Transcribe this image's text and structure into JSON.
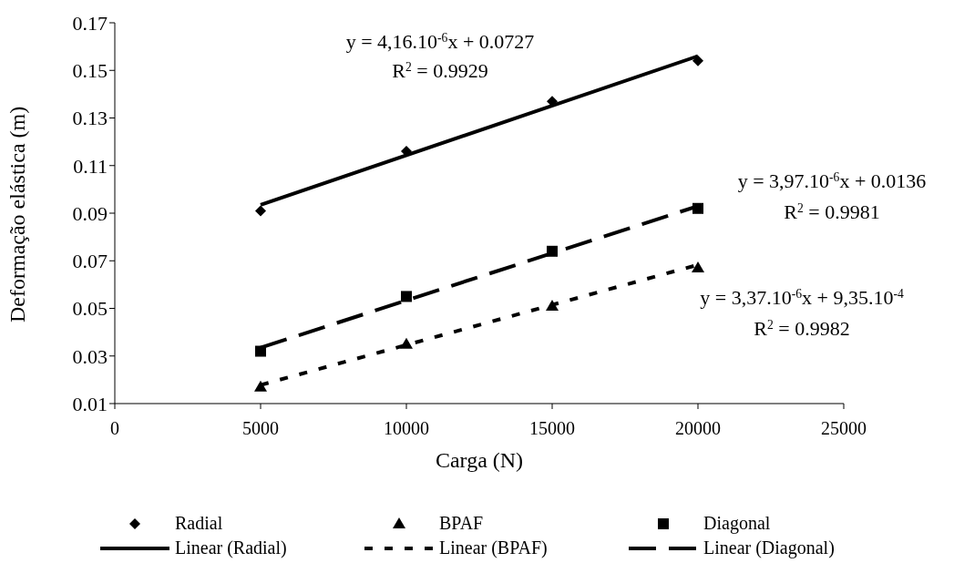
{
  "chart_data": {
    "type": "scatter",
    "xlabel": "Carga (N)",
    "ylabel": "Deformação elástica (m)",
    "xlim": [
      0,
      25000
    ],
    "xticks": [
      0,
      5000,
      10000,
      15000,
      20000,
      25000
    ],
    "ylim": [
      0.01,
      0.17
    ],
    "yticks": [
      0.01,
      0.03,
      0.05,
      0.07,
      0.09,
      0.11,
      0.13,
      0.15,
      0.17
    ],
    "grid": false,
    "legend": "bottom",
    "series": [
      {
        "name": "Radial",
        "type": "scatter",
        "marker": "diamond",
        "color": "#000000",
        "x": [
          5000,
          10000,
          15000,
          20000
        ],
        "values": [
          0.091,
          0.116,
          0.137,
          0.154
        ]
      },
      {
        "name": "BPAF",
        "type": "scatter",
        "marker": "triangle",
        "color": "#000000",
        "x": [
          5000,
          10000,
          15000,
          20000
        ],
        "values": [
          0.017,
          0.035,
          0.051,
          0.067
        ]
      },
      {
        "name": "Diagonal",
        "type": "scatter",
        "marker": "square",
        "color": "#000000",
        "x": [
          5000,
          10000,
          15000,
          20000
        ],
        "values": [
          0.032,
          0.055,
          0.074,
          0.092
        ]
      },
      {
        "name": "Linear (Radial)",
        "type": "line",
        "line_style": "solid",
        "color": "#000000",
        "x": [
          5000,
          20000
        ],
        "values": [
          0.0935,
          0.156
        ]
      },
      {
        "name": "Linear (BPAF)",
        "type": "line",
        "line_style": "dotted",
        "color": "#000000",
        "x": [
          5000,
          20000
        ],
        "values": [
          0.0178,
          0.0683
        ]
      },
      {
        "name": "Linear (Diagonal)",
        "type": "line",
        "line_style": "dashed",
        "color": "#000000",
        "x": [
          5000,
          20000
        ],
        "values": [
          0.0335,
          0.093
        ]
      }
    ],
    "annotations": [
      "y = 4,16.10$^{-6}$x + 0.0727",
      "R$^{2}$ = 0.9929",
      "y = 3,97.10$^{-6}$x + 0.0136",
      "R$^{2}$ = 0.9981",
      "y = 3,37.10$^{-6}$x + 9,35.10$^{-4}$",
      "R$^{2}$ = 0.9982"
    ]
  }
}
